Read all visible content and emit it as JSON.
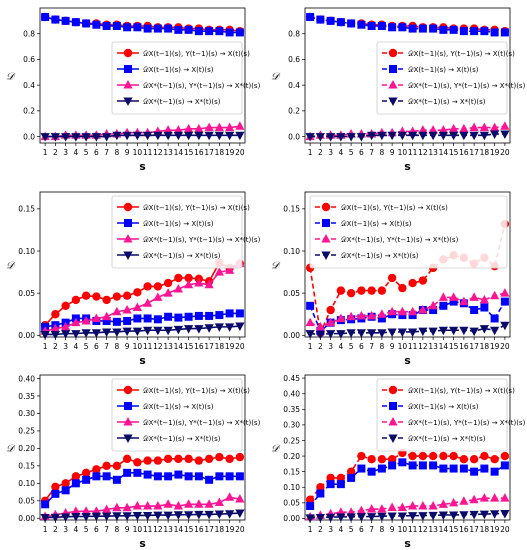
{
  "legend_labels": [
    "𝒟X(t−1)(s), Y(t−1)(s) → X(t)(s)",
    "𝒟X(t−1)(s) → X(t)(s)",
    "𝒟X*(t−1)(s), Y*(t−1)(s) → X*(t)(s)",
    "𝒟X*(t−1)(s) → X*(t)(s)"
  ],
  "colors": [
    "#ff0000",
    "#0000ff",
    "#ff1493",
    "#0a0a6b"
  ],
  "chart_data": [
    {
      "type": "line",
      "xlabel": "s",
      "ylabel": "𝒟",
      "x": [
        1,
        2,
        3,
        4,
        5,
        6,
        7,
        8,
        9,
        10,
        11,
        12,
        13,
        14,
        15,
        16,
        17,
        18,
        19,
        20
      ],
      "ylim": [
        -0.05,
        1.0
      ],
      "yticks": [
        0.0,
        0.2,
        0.4,
        0.6,
        0.8
      ],
      "ytick_labels": [
        "0.0",
        "0.2",
        "0.4",
        "0.6",
        "0.8"
      ],
      "linestyle": "solid",
      "legend_position": "center-right",
      "series": [
        {
          "name": "𝒟X(t−1)(s), Y(t−1)(s) → X(t)(s)",
          "marker": "circle",
          "values": [
            0.93,
            0.91,
            0.9,
            0.89,
            0.88,
            0.88,
            0.87,
            0.87,
            0.86,
            0.86,
            0.86,
            0.85,
            0.85,
            0.85,
            0.84,
            0.84,
            0.83,
            0.83,
            0.83,
            0.82
          ]
        },
        {
          "name": "𝒟X(t−1)(s) → X(t)(s)",
          "marker": "square",
          "values": [
            0.93,
            0.91,
            0.9,
            0.89,
            0.88,
            0.87,
            0.86,
            0.86,
            0.85,
            0.85,
            0.84,
            0.84,
            0.84,
            0.83,
            0.83,
            0.82,
            0.82,
            0.82,
            0.81,
            0.81
          ]
        },
        {
          "name": "𝒟X*(t−1)(s), Y*(t−1)(s) → X*(t)(s)",
          "marker": "triangle-up",
          "values": [
            0.0,
            0.0,
            0.01,
            0.01,
            0.01,
            0.01,
            0.02,
            0.02,
            0.03,
            0.03,
            0.03,
            0.04,
            0.05,
            0.05,
            0.06,
            0.06,
            0.07,
            0.07,
            0.07,
            0.08
          ]
        },
        {
          "name": "𝒟X*(t−1)(s) → X*(t)(s)",
          "marker": "triangle-down",
          "values": [
            0.0,
            0.0,
            0.0,
            0.0,
            0.0,
            0.0,
            0.0,
            0.01,
            0.01,
            0.01,
            0.01,
            0.01,
            0.01,
            0.01,
            0.01,
            0.01,
            0.01,
            0.01,
            0.01,
            0.01
          ]
        }
      ]
    },
    {
      "type": "line",
      "xlabel": "s",
      "ylabel": "𝒟",
      "x": [
        1,
        2,
        3,
        4,
        5,
        6,
        7,
        8,
        9,
        10,
        11,
        12,
        13,
        14,
        15,
        16,
        17,
        18,
        19,
        20
      ],
      "ylim": [
        -0.05,
        1.0
      ],
      "yticks": [
        0.0,
        0.2,
        0.4,
        0.6,
        0.8
      ],
      "ytick_labels": [
        "0.0",
        "0.2",
        "0.4",
        "0.6",
        "0.8"
      ],
      "linestyle": "dashed",
      "legend_position": "center-right",
      "series": [
        {
          "name": "𝒟X(t−1)(s), Y(t−1)(s) → X(t)(s)",
          "marker": "circle",
          "values": [
            0.93,
            0.91,
            0.9,
            0.89,
            0.88,
            0.88,
            0.87,
            0.87,
            0.86,
            0.86,
            0.86,
            0.85,
            0.85,
            0.85,
            0.84,
            0.84,
            0.84,
            0.83,
            0.83,
            0.82
          ]
        },
        {
          "name": "𝒟X(t−1)(s) → X(t)(s)",
          "marker": "square",
          "values": [
            0.93,
            0.91,
            0.9,
            0.89,
            0.88,
            0.87,
            0.86,
            0.86,
            0.85,
            0.85,
            0.84,
            0.84,
            0.84,
            0.83,
            0.83,
            0.82,
            0.82,
            0.82,
            0.81,
            0.81
          ]
        },
        {
          "name": "𝒟X*(t−1)(s), Y*(t−1)(s) → X*(t)(s)",
          "marker": "triangle-up",
          "values": [
            0.0,
            0.01,
            0.01,
            0.01,
            0.02,
            0.02,
            0.02,
            0.03,
            0.03,
            0.04,
            0.04,
            0.05,
            0.05,
            0.05,
            0.06,
            0.06,
            0.07,
            0.07,
            0.07,
            0.08
          ]
        },
        {
          "name": "𝒟X*(t−1)(s) → X*(t)(s)",
          "marker": "triangle-down",
          "values": [
            0.0,
            0.0,
            0.0,
            0.0,
            0.0,
            0.0,
            0.01,
            0.01,
            0.01,
            0.01,
            0.01,
            0.01,
            0.01,
            0.01,
            0.01,
            0.01,
            0.01,
            0.01,
            0.02,
            0.02
          ]
        }
      ]
    },
    {
      "type": "line",
      "xlabel": "s",
      "ylabel": "𝒟",
      "x": [
        1,
        2,
        3,
        4,
        5,
        6,
        7,
        8,
        9,
        10,
        11,
        12,
        13,
        14,
        15,
        16,
        17,
        18,
        19,
        20
      ],
      "ylim": [
        -0.002,
        0.17
      ],
      "yticks": [
        0.0,
        0.05,
        0.1,
        0.15
      ],
      "ytick_labels": [
        "0.00",
        "0.05",
        "0.10",
        "0.15"
      ],
      "linestyle": "solid",
      "legend_position": "top-right",
      "series": [
        {
          "name": "𝒟X(t−1)(s), Y(t−1)(s) → X(t)(s)",
          "marker": "circle",
          "values": [
            0.012,
            0.025,
            0.035,
            0.042,
            0.047,
            0.046,
            0.042,
            0.046,
            0.047,
            0.051,
            0.058,
            0.058,
            0.062,
            0.068,
            0.068,
            0.067,
            0.064,
            0.086,
            0.08,
            0.085
          ]
        },
        {
          "name": "𝒟X(t−1)(s) → X(t)(s)",
          "marker": "square",
          "values": [
            0.01,
            0.012,
            0.015,
            0.02,
            0.02,
            0.017,
            0.017,
            0.016,
            0.017,
            0.02,
            0.02,
            0.019,
            0.022,
            0.021,
            0.022,
            0.023,
            0.023,
            0.024,
            0.026,
            0.026
          ]
        },
        {
          "name": "𝒟X*(t−1)(s), Y*(t−1)(s) → X*(t)(s)",
          "marker": "triangle-up",
          "values": [
            0.005,
            0.008,
            0.01,
            0.015,
            0.017,
            0.02,
            0.022,
            0.028,
            0.03,
            0.033,
            0.038,
            0.045,
            0.05,
            0.055,
            0.06,
            0.062,
            0.06,
            0.075,
            0.077,
            0.085
          ]
        },
        {
          "name": "𝒟X*(t−1)(s) → X*(t)(s)",
          "marker": "triangle-down",
          "values": [
            0.001,
            0.001,
            0.002,
            0.002,
            0.003,
            0.003,
            0.004,
            0.004,
            0.005,
            0.005,
            0.006,
            0.006,
            0.006,
            0.007,
            0.008,
            0.008,
            0.009,
            0.01,
            0.01,
            0.011
          ]
        }
      ]
    },
    {
      "type": "line",
      "xlabel": "s",
      "ylabel": "𝒟",
      "x": [
        1,
        2,
        3,
        4,
        5,
        6,
        7,
        8,
        9,
        10,
        11,
        12,
        13,
        14,
        15,
        16,
        17,
        18,
        19,
        20
      ],
      "ylim": [
        -0.002,
        0.17
      ],
      "yticks": [
        0.0,
        0.05,
        0.1,
        0.15
      ],
      "ytick_labels": [
        "0.00",
        "0.05",
        "0.10",
        "0.15"
      ],
      "linestyle": "dashed",
      "legend_position": "top-right",
      "series": [
        {
          "name": "𝒟X(t−1)(s), Y(t−1)(s) → X(t)(s)",
          "marker": "circle",
          "values": [
            0.08,
            0.003,
            0.03,
            0.053,
            0.05,
            0.053,
            0.053,
            0.053,
            0.068,
            0.056,
            0.062,
            0.065,
            0.08,
            0.09,
            0.095,
            0.092,
            0.085,
            0.092,
            0.082,
            0.132
          ]
        },
        {
          "name": "𝒟X(t−1)(s) → X(t)(s)",
          "marker": "square",
          "values": [
            0.035,
            0.005,
            0.015,
            0.018,
            0.019,
            0.02,
            0.022,
            0.02,
            0.025,
            0.024,
            0.024,
            0.03,
            0.03,
            0.035,
            0.04,
            0.038,
            0.03,
            0.033,
            0.02,
            0.04
          ]
        },
        {
          "name": "𝒟X*(t−1)(s), Y*(t−1)(s) → X*(t)(s)",
          "marker": "triangle-up",
          "values": [
            0.015,
            0.01,
            0.015,
            0.02,
            0.022,
            0.023,
            0.023,
            0.025,
            0.028,
            0.028,
            0.028,
            0.03,
            0.035,
            0.045,
            0.045,
            0.04,
            0.045,
            0.042,
            0.047,
            0.05
          ]
        },
        {
          "name": "𝒟X*(t−1)(s) → X*(t)(s)",
          "marker": "triangle-down",
          "values": [
            0.002,
            0.001,
            0.002,
            0.002,
            0.003,
            0.003,
            0.003,
            0.003,
            0.004,
            0.004,
            0.004,
            0.005,
            0.005,
            0.006,
            0.006,
            0.006,
            0.005,
            0.008,
            0.006,
            0.012
          ]
        }
      ]
    },
    {
      "type": "line",
      "xlabel": "s",
      "ylabel": "𝒟",
      "x": [
        1,
        2,
        3,
        4,
        5,
        6,
        7,
        8,
        9,
        10,
        11,
        12,
        13,
        14,
        15,
        16,
        17,
        18,
        19,
        20
      ],
      "ylim": [
        -0.005,
        0.41
      ],
      "yticks": [
        0.0,
        0.05,
        0.1,
        0.15,
        0.2,
        0.25,
        0.3,
        0.35,
        0.4
      ],
      "ytick_labels": [
        "0.00",
        "0.05",
        "0.10",
        "0.15",
        "0.20",
        "0.25",
        "0.30",
        "0.35",
        "0.40"
      ],
      "linestyle": "solid",
      "legend_position": "top-right",
      "series": [
        {
          "name": "𝒟X(t−1)(s), Y(t−1)(s) → X(t)(s)",
          "marker": "circle",
          "values": [
            0.05,
            0.09,
            0.1,
            0.12,
            0.13,
            0.14,
            0.15,
            0.15,
            0.17,
            0.16,
            0.165,
            0.165,
            0.17,
            0.17,
            0.17,
            0.165,
            0.17,
            0.175,
            0.17,
            0.175
          ]
        },
        {
          "name": "𝒟X(t−1)(s) → X(t)(s)",
          "marker": "square",
          "values": [
            0.04,
            0.07,
            0.08,
            0.1,
            0.11,
            0.12,
            0.12,
            0.11,
            0.13,
            0.13,
            0.125,
            0.12,
            0.12,
            0.125,
            0.12,
            0.12,
            0.11,
            0.12,
            0.12,
            0.12
          ]
        },
        {
          "name": "𝒟X*(t−1)(s), Y*(t−1)(s) → X*(t)(s)",
          "marker": "triangle-up",
          "values": [
            0.005,
            0.01,
            0.015,
            0.02,
            0.02,
            0.02,
            0.025,
            0.03,
            0.03,
            0.035,
            0.035,
            0.035,
            0.04,
            0.035,
            0.04,
            0.04,
            0.04,
            0.045,
            0.06,
            0.055
          ]
        },
        {
          "name": "𝒟X*(t−1)(s) → X*(t)(s)",
          "marker": "triangle-down",
          "values": [
            0.002,
            0.003,
            0.004,
            0.005,
            0.005,
            0.006,
            0.006,
            0.007,
            0.007,
            0.008,
            0.008,
            0.009,
            0.009,
            0.01,
            0.01,
            0.011,
            0.011,
            0.012,
            0.013,
            0.015
          ]
        }
      ]
    },
    {
      "type": "line",
      "xlabel": "s",
      "ylabel": "𝒟",
      "x": [
        1,
        2,
        3,
        4,
        5,
        6,
        7,
        8,
        9,
        10,
        11,
        12,
        13,
        14,
        15,
        16,
        17,
        18,
        19,
        20
      ],
      "ylim": [
        -0.005,
        0.46
      ],
      "yticks": [
        0.0,
        0.05,
        0.1,
        0.15,
        0.2,
        0.25,
        0.3,
        0.35,
        0.4,
        0.45
      ],
      "ytick_labels": [
        "0.00",
        "0.05",
        "0.10",
        "0.15",
        "0.20",
        "0.25",
        "0.30",
        "0.35",
        "0.40",
        "0.45"
      ],
      "linestyle": "dashed",
      "legend_position": "top-right",
      "series": [
        {
          "name": "𝒟X(t−1)(s), Y(t−1)(s) → X(t)(s)",
          "marker": "circle",
          "values": [
            0.06,
            0.1,
            0.13,
            0.13,
            0.15,
            0.2,
            0.19,
            0.19,
            0.19,
            0.21,
            0.2,
            0.2,
            0.2,
            0.2,
            0.2,
            0.19,
            0.19,
            0.2,
            0.19,
            0.2
          ]
        },
        {
          "name": "𝒟X(t−1)(s) → X(t)(s)",
          "marker": "square",
          "values": [
            0.04,
            0.08,
            0.11,
            0.11,
            0.13,
            0.16,
            0.15,
            0.16,
            0.17,
            0.18,
            0.17,
            0.17,
            0.17,
            0.16,
            0.16,
            0.16,
            0.15,
            0.16,
            0.15,
            0.17
          ]
        },
        {
          "name": "𝒟X*(t−1)(s), Y*(t−1)(s) → X*(t)(s)",
          "marker": "triangle-up",
          "values": [
            0.005,
            0.01,
            0.015,
            0.02,
            0.02,
            0.025,
            0.03,
            0.03,
            0.035,
            0.035,
            0.04,
            0.04,
            0.04,
            0.045,
            0.05,
            0.055,
            0.06,
            0.065,
            0.065,
            0.065
          ]
        },
        {
          "name": "𝒟X*(t−1)(s) → X*(t)(s)",
          "marker": "triangle-down",
          "values": [
            0.002,
            0.003,
            0.004,
            0.005,
            0.005,
            0.006,
            0.006,
            0.007,
            0.008,
            0.008,
            0.009,
            0.009,
            0.01,
            0.011,
            0.011,
            0.012,
            0.013,
            0.014,
            0.015,
            0.016
          ]
        }
      ]
    }
  ]
}
